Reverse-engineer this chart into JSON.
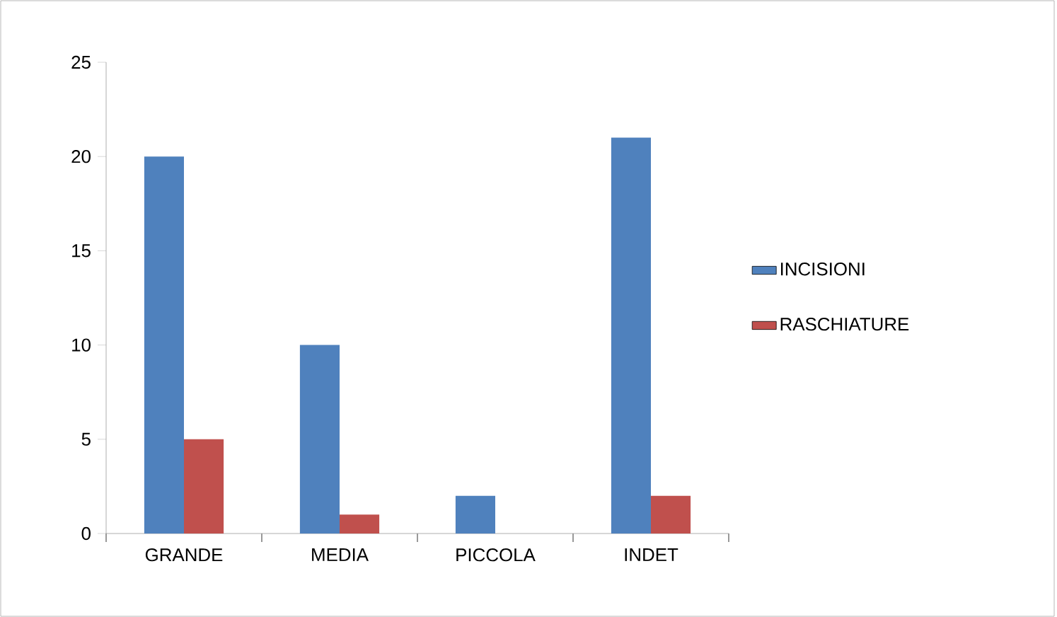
{
  "chart_data": {
    "type": "bar",
    "categories": [
      "GRANDE",
      "MEDIA",
      "PICCOLA",
      "INDET"
    ],
    "series": [
      {
        "name": "INCISIONI",
        "color": "#4f81bd",
        "values": [
          20,
          10,
          2,
          21
        ]
      },
      {
        "name": "RASCHIATURE",
        "color": "#c0504d",
        "values": [
          5,
          1,
          0,
          2
        ]
      }
    ],
    "ylim": [
      0,
      25
    ],
    "yticks": [
      0,
      5,
      10,
      15,
      20,
      25
    ],
    "legend": "right"
  }
}
